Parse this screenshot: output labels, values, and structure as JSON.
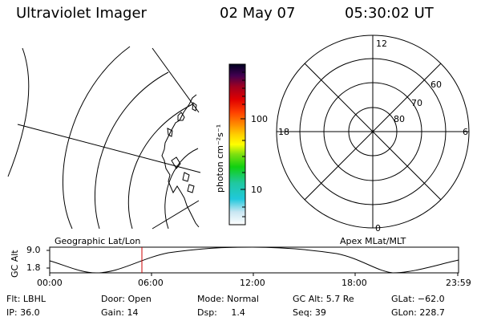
{
  "header": {
    "title": "Ultraviolet Imager",
    "date": "02 May 07",
    "time": "05:30:02 UT"
  },
  "colorbar": {
    "unit_text": "photon cm⁻²s⁻¹",
    "ticks": [
      "100",
      "10"
    ]
  },
  "polar_plot": {
    "mlt_labels": [
      "12",
      "18",
      "6",
      "0"
    ],
    "lat_labels": [
      "60",
      "70",
      "80"
    ]
  },
  "altitude_panel": {
    "ylabel": "GC Alt",
    "yticks": [
      "9.0",
      "1.8"
    ],
    "left_title": "Geographic Lat/Lon",
    "right_title": "Apex  MLat/MLT",
    "time_ticks": [
      "00:00",
      "06:00",
      "12:00",
      "18:00",
      "23:59"
    ],
    "marker_time": "05:30",
    "marker_color": "#cc0000"
  },
  "status": {
    "flt": "Flt: LBHL",
    "ip": "IP: 36.0",
    "door": "Door: Open",
    "gain": "Gain: 14",
    "mode": "Mode: Normal",
    "dsp": "Dsp:     1.4",
    "gcalt": "GC Alt: 5.7 Re",
    "seq": "Seq: 39",
    "glat": "GLat: −62.0",
    "glon": "GLon: 228.7"
  }
}
